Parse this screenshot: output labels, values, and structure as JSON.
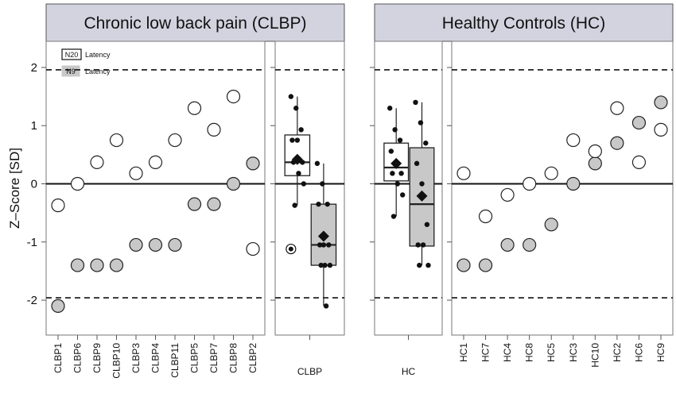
{
  "chart_data": {
    "type": "scatter",
    "ylabel": "Z–Score [SD]",
    "ylim": [
      -2.6,
      2.45
    ],
    "yticks": [
      -2,
      -1,
      0,
      1,
      2
    ],
    "reference_lines": {
      "dashed": [
        -1.96,
        1.96
      ],
      "solid": [
        0
      ]
    },
    "colors": {
      "n20": "#ffffff",
      "n9": "#c8c8c8",
      "strip": "#d3d3e0",
      "axis": "#555555",
      "point": "#111111"
    },
    "legend": [
      {
        "key": "N20",
        "label": "Latency",
        "fill": "white"
      },
      {
        "key": "N9",
        "label": "Latency",
        "fill": "gray"
      }
    ],
    "groups": [
      {
        "title": "Chronic low back pain (CLBP)",
        "subjects": [
          {
            "name": "CLBP1",
            "n20": -0.37,
            "n9": -2.1
          },
          {
            "name": "CLBP6",
            "n20": 0.0,
            "n9": -1.4
          },
          {
            "name": "CLBP9",
            "n20": 0.37,
            "n9": -1.4
          },
          {
            "name": "CLBP10",
            "n20": 0.75,
            "n9": -1.4
          },
          {
            "name": "CLBP3",
            "n20": 0.18,
            "n9": -1.05
          },
          {
            "name": "CLBP4",
            "n20": 0.37,
            "n9": -1.05
          },
          {
            "name": "CLBP11",
            "n20": 0.75,
            "n9": -1.05
          },
          {
            "name": "CLBP5",
            "n20": 1.3,
            "n9": -0.35
          },
          {
            "name": "CLBP7",
            "n20": 0.93,
            "n9": -0.35
          },
          {
            "name": "CLBP8",
            "n20": 1.5,
            "n9": 0.0
          },
          {
            "name": "CLBP2",
            "n20": -1.12,
            "n9": 0.35
          }
        ],
        "summary_label": "CLBP",
        "boxes": [
          {
            "measure": "N20",
            "q1": 0.14,
            "median": 0.37,
            "q3": 0.84,
            "whisker_low": -0.37,
            "whisker_high": 1.5,
            "mean": 0.42,
            "points": [
              1.5,
              1.3,
              0.93,
              0.75,
              0.75,
              0.37,
              0.37,
              0.18,
              0.0,
              -0.37
            ],
            "outliers": [
              -1.12
            ]
          },
          {
            "measure": "N9",
            "q1": -1.4,
            "median": -1.05,
            "q3": -0.35,
            "whisker_low": -2.1,
            "whisker_high": 0.35,
            "mean": -0.9,
            "points": [
              0.35,
              0.0,
              -0.35,
              -0.35,
              -1.05,
              -1.05,
              -1.05,
              -1.4,
              -1.4,
              -1.4,
              -2.1
            ],
            "outliers": []
          }
        ]
      },
      {
        "title": "Healthy Controls (HC)",
        "subjects": [
          {
            "name": "HC1",
            "n20": 0.18,
            "n9": -1.4
          },
          {
            "name": "HC7",
            "n20": -0.56,
            "n9": -1.4
          },
          {
            "name": "HC4",
            "n20": -0.19,
            "n9": -1.05
          },
          {
            "name": "HC8",
            "n20": 0.0,
            "n9": -1.05
          },
          {
            "name": "HC5",
            "n20": 0.18,
            "n9": -0.7
          },
          {
            "name": "HC3",
            "n20": 0.75,
            "n9": 0.0
          },
          {
            "name": "HC10",
            "n20": 0.56,
            "n9": 0.35
          },
          {
            "name": "HC2",
            "n20": 1.3,
            "n9": 0.7
          },
          {
            "name": "HC6",
            "n20": 0.37,
            "n9": 1.05
          },
          {
            "name": "HC9",
            "n20": 0.93,
            "n9": 1.4
          }
        ],
        "summary_label": "HC",
        "boxes": [
          {
            "measure": "N20",
            "q1": 0.05,
            "median": 0.28,
            "q3": 0.7,
            "whisker_low": -0.56,
            "whisker_high": 1.3,
            "mean": 0.35,
            "points": [
              1.3,
              0.93,
              0.75,
              0.56,
              0.37,
              0.18,
              0.18,
              0.0,
              -0.19,
              -0.56
            ],
            "outliers": []
          },
          {
            "measure": "N9",
            "q1": -1.07,
            "median": -0.35,
            "q3": 0.62,
            "whisker_low": -1.4,
            "whisker_high": 1.4,
            "mean": -0.21,
            "points": [
              1.4,
              1.05,
              0.7,
              0.35,
              0.0,
              -0.7,
              -1.05,
              -1.05,
              -1.4,
              -1.4
            ],
            "outliers": []
          }
        ]
      }
    ]
  }
}
